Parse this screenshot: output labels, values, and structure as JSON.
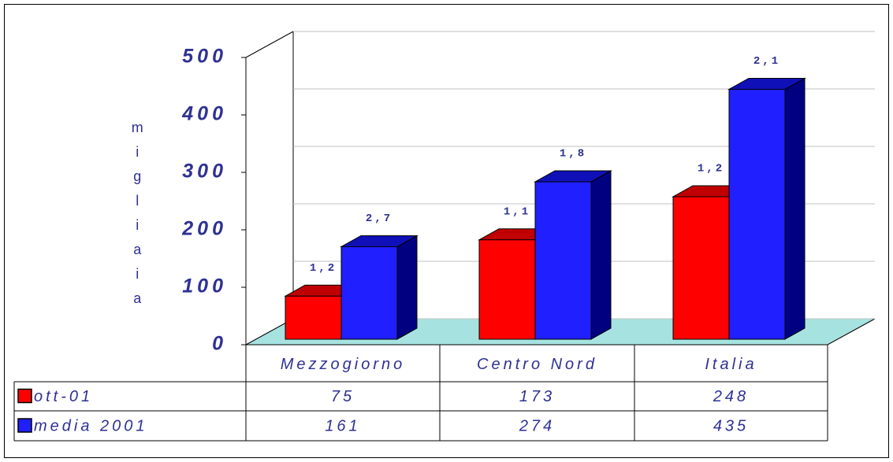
{
  "chart_data": {
    "type": "bar3d",
    "y_label": "migliaia",
    "categories": [
      "Mezzogiorno",
      "Centro Nord",
      "Italia"
    ],
    "series": [
      {
        "name": "ott-01",
        "color": "#ff0000",
        "top_color": "#c00000",
        "side_color": "#800000",
        "values": [
          75,
          173,
          248
        ],
        "labels": [
          "1,2",
          "1,1",
          "1,2"
        ]
      },
      {
        "name": "media 2001",
        "color": "#1f1fff",
        "top_color": "#1010b8",
        "side_color": "#000080",
        "values": [
          161,
          274,
          435
        ],
        "labels": [
          "2,7",
          "1,8",
          "2,1"
        ]
      }
    ],
    "ylim": [
      0,
      500
    ],
    "yticks": [
      0,
      100,
      200,
      300,
      400,
      500
    ],
    "grid": true,
    "floor_color": "#a6e3e0",
    "text_color": "#2e3192"
  }
}
